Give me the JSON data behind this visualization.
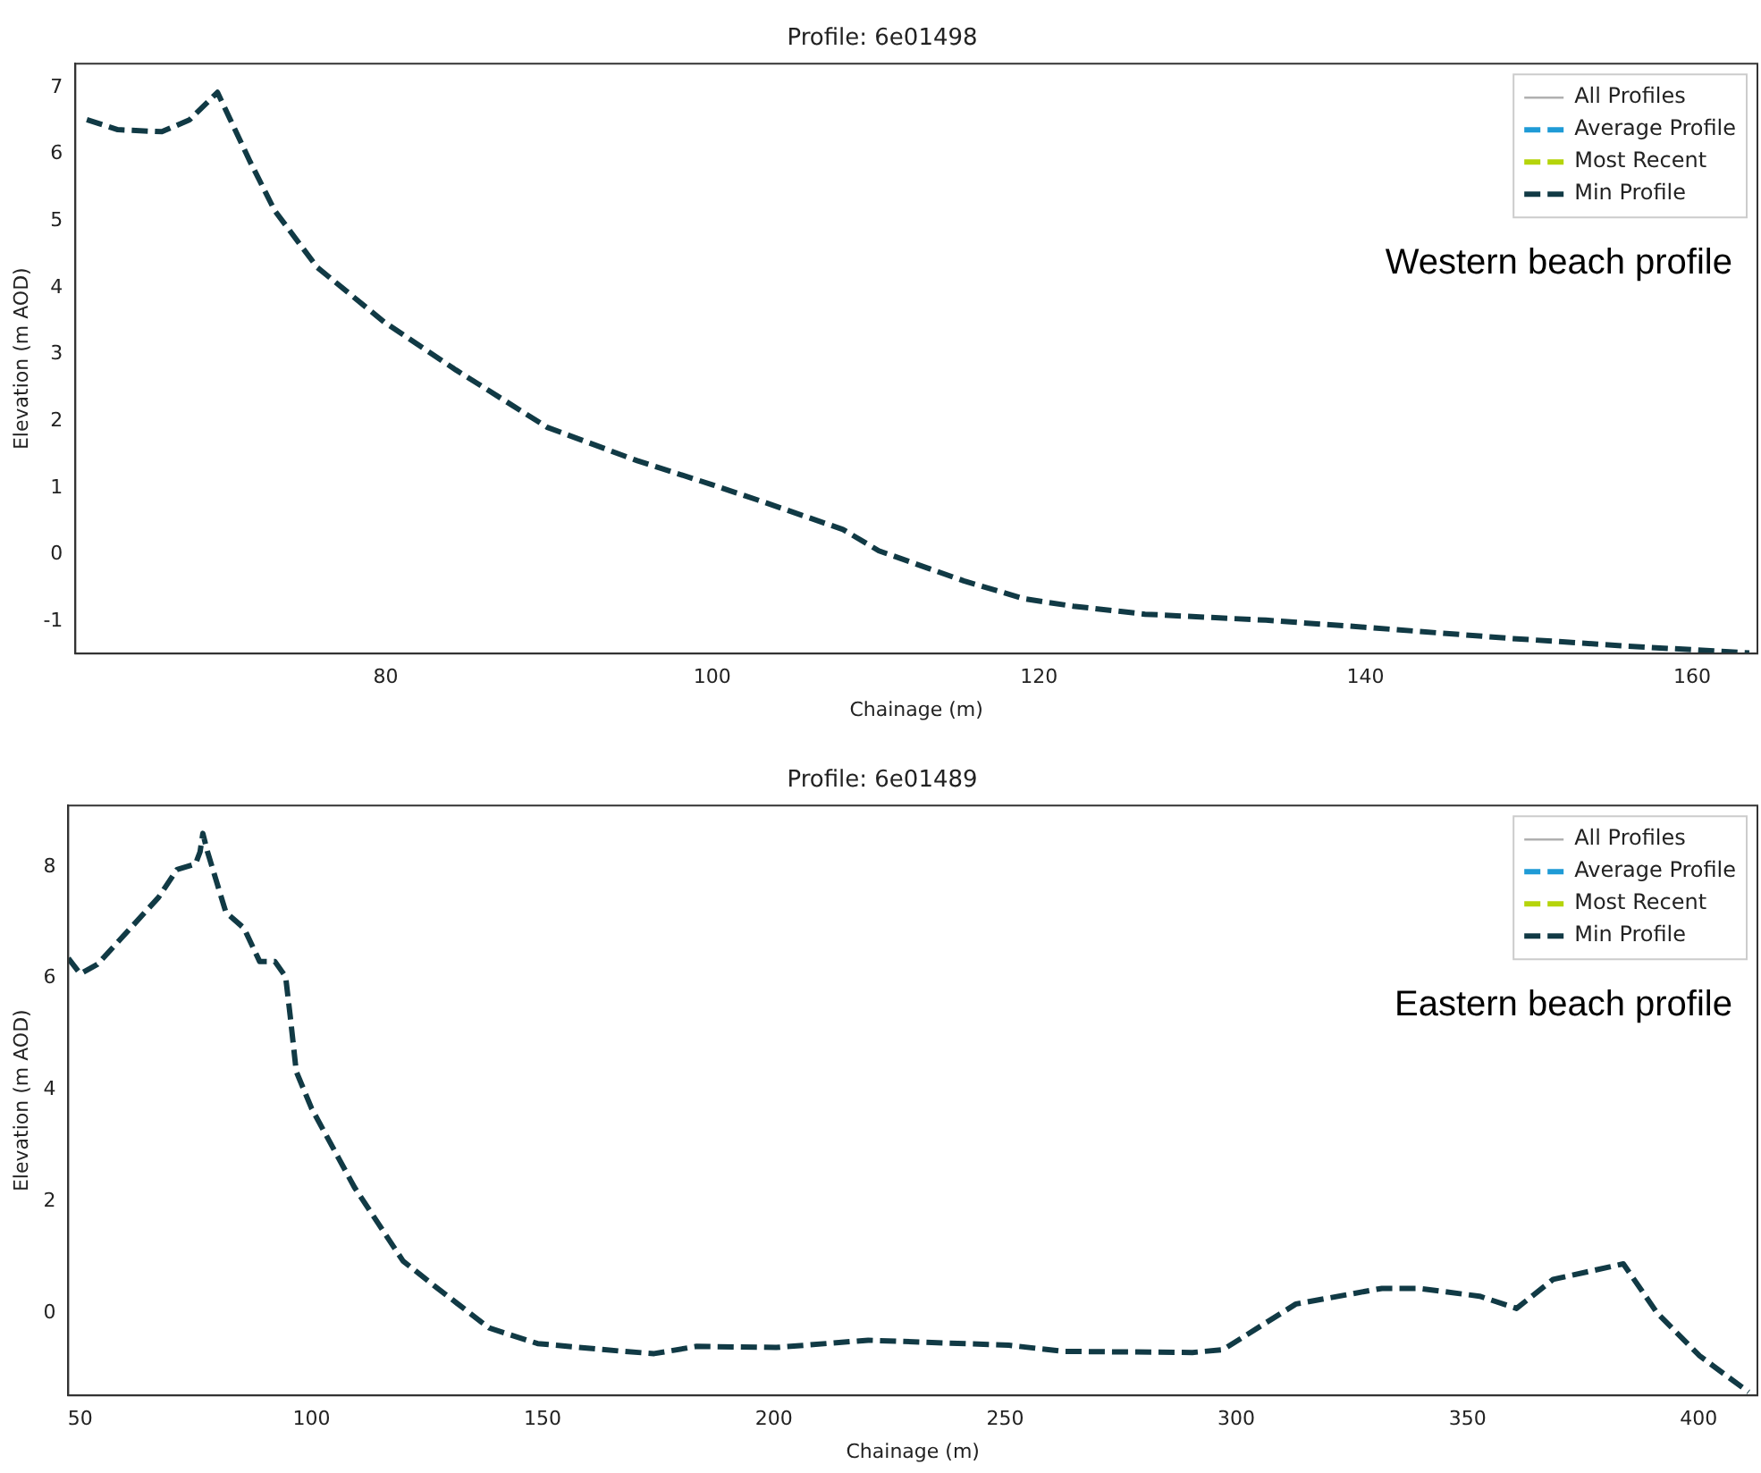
{
  "chart_data": [
    {
      "type": "line",
      "title": "Profile: 6e01498",
      "xlabel": "Chainage (m)",
      "ylabel": "Elevation (m AOD)",
      "annotations": [
        "Western beach profile"
      ],
      "legend": "top right",
      "grid": false,
      "marker": "none",
      "xlim": [
        61,
        164
      ],
      "xticks": [
        80,
        100,
        120,
        140,
        160
      ],
      "ylim": [
        -1.48,
        7.36
      ],
      "yticks": [
        -1,
        0,
        1,
        2,
        3,
        4,
        5,
        6,
        7
      ],
      "x": [
        61.7,
        63.6,
        66.3,
        68.0,
        69.7,
        71.7,
        73.2,
        75.8,
        79.9,
        84.3,
        89.9,
        95.4,
        100,
        102.8,
        108.0,
        110.2,
        115.4,
        119.1,
        122.1,
        126.5,
        133.9,
        140.2,
        148.7,
        156.1,
        163.5
      ],
      "series": [
        {
          "name": "All Profiles",
          "color": "#b0b0b0",
          "line_style": "solid",
          "values": [
            null,
            null,
            null,
            null,
            null,
            null,
            null,
            null,
            null,
            null,
            null,
            null,
            null,
            null,
            null,
            null,
            null,
            null,
            null,
            null,
            null,
            null,
            null,
            null,
            null
          ]
        },
        {
          "name": "Average Profile",
          "color": "#1f9bd6",
          "line_style": "dashed",
          "values": [
            null,
            null,
            null,
            null,
            null,
            null,
            null,
            null,
            null,
            null,
            null,
            null,
            null,
            null,
            null,
            null,
            null,
            null,
            null,
            null,
            null,
            null,
            null,
            null,
            null
          ]
        },
        {
          "name": "Most Recent",
          "color": "#b5d40a",
          "line_style": "dashed",
          "values": [
            null,
            null,
            null,
            null,
            null,
            null,
            null,
            null,
            null,
            null,
            null,
            null,
            null,
            null,
            null,
            null,
            null,
            null,
            null,
            null,
            null,
            null,
            null,
            null,
            null
          ]
        },
        {
          "name": "Min Profile",
          "color": "#113a45",
          "line_style": "dashed",
          "values": [
            6.52,
            6.37,
            6.34,
            6.52,
            6.93,
            5.89,
            5.16,
            4.31,
            3.49,
            2.77,
            1.91,
            1.41,
            1.05,
            0.82,
            0.38,
            0.06,
            -0.39,
            -0.66,
            -0.77,
            -0.89,
            -0.98,
            -1.09,
            -1.25,
            -1.37,
            -1.47
          ]
        }
      ]
    },
    {
      "type": "line",
      "title": "Profile: 6e01489",
      "xlabel": "Chainage (m)",
      "ylabel": "Elevation (m AOD)",
      "annotations": [
        "Eastern beach profile"
      ],
      "legend": "top right",
      "grid": false,
      "marker": "none",
      "xlim": [
        47.4,
        412.7
      ],
      "xticks": [
        50,
        100,
        150,
        200,
        250,
        300,
        350,
        400
      ],
      "ylim": [
        -1.48,
        9.1
      ],
      "yticks": [
        0,
        2,
        4,
        6,
        8
      ],
      "x": [
        47.4,
        50,
        53.7,
        66.9,
        70.9,
        74.9,
        75.9,
        76.5,
        77.5,
        81.5,
        85.4,
        88.8,
        92.1,
        94.4,
        95.4,
        96.7,
        100,
        109.3,
        119.8,
        126.5,
        138.4,
        148.9,
        167.5,
        174.1,
        183.3,
        200.5,
        220.4,
        250.8,
        262.7,
        290.5,
        297.1,
        312.9,
        331.5,
        339.4,
        352.6,
        360.6,
        368.5,
        383.7,
        391.0,
        400.2,
        410.8
      ],
      "series": [
        {
          "name": "All Profiles",
          "color": "#b0b0b0",
          "line_style": "solid",
          "values": [
            null,
            null,
            null,
            null,
            null,
            null,
            null,
            null,
            null,
            null,
            null,
            null,
            null,
            null,
            null,
            null,
            null,
            null,
            null,
            null,
            null,
            null,
            null,
            null,
            null,
            null,
            null,
            null,
            null,
            null,
            null,
            null,
            null,
            null,
            null,
            null,
            null,
            null,
            null,
            null,
            null
          ]
        },
        {
          "name": "Average Profile",
          "color": "#1f9bd6",
          "line_style": "dashed",
          "values": [
            null,
            null,
            null,
            null,
            null,
            null,
            null,
            null,
            null,
            null,
            null,
            null,
            null,
            null,
            null,
            null,
            null,
            null,
            null,
            null,
            null,
            null,
            null,
            null,
            null,
            null,
            null,
            null,
            null,
            null,
            null,
            null,
            null,
            null,
            null,
            null,
            null,
            null,
            null,
            null,
            null
          ]
        },
        {
          "name": "Most Recent",
          "color": "#b5d40a",
          "line_style": "dashed",
          "values": [
            null,
            null,
            null,
            null,
            null,
            null,
            null,
            null,
            null,
            null,
            null,
            null,
            null,
            null,
            null,
            null,
            null,
            null,
            null,
            null,
            null,
            null,
            null,
            null,
            null,
            null,
            null,
            null,
            null,
            null,
            null,
            null,
            null,
            null,
            null,
            null,
            null,
            null,
            null,
            null,
            null
          ]
        },
        {
          "name": "Min Profile",
          "color": "#113a45",
          "line_style": "dashed",
          "values": [
            6.36,
            6.08,
            6.25,
            7.45,
            7.95,
            8.05,
            8.27,
            8.6,
            8.27,
            7.18,
            6.9,
            6.3,
            6.3,
            6.03,
            5.32,
            4.33,
            3.67,
            2.25,
            0.93,
            0.49,
            -0.27,
            -0.55,
            -0.69,
            -0.73,
            -0.6,
            -0.62,
            -0.49,
            -0.58,
            -0.69,
            -0.71,
            -0.66,
            0.16,
            0.44,
            0.44,
            0.3,
            0.08,
            0.6,
            0.88,
            0.0,
            -0.77,
            -1.42
          ]
        }
      ]
    }
  ]
}
